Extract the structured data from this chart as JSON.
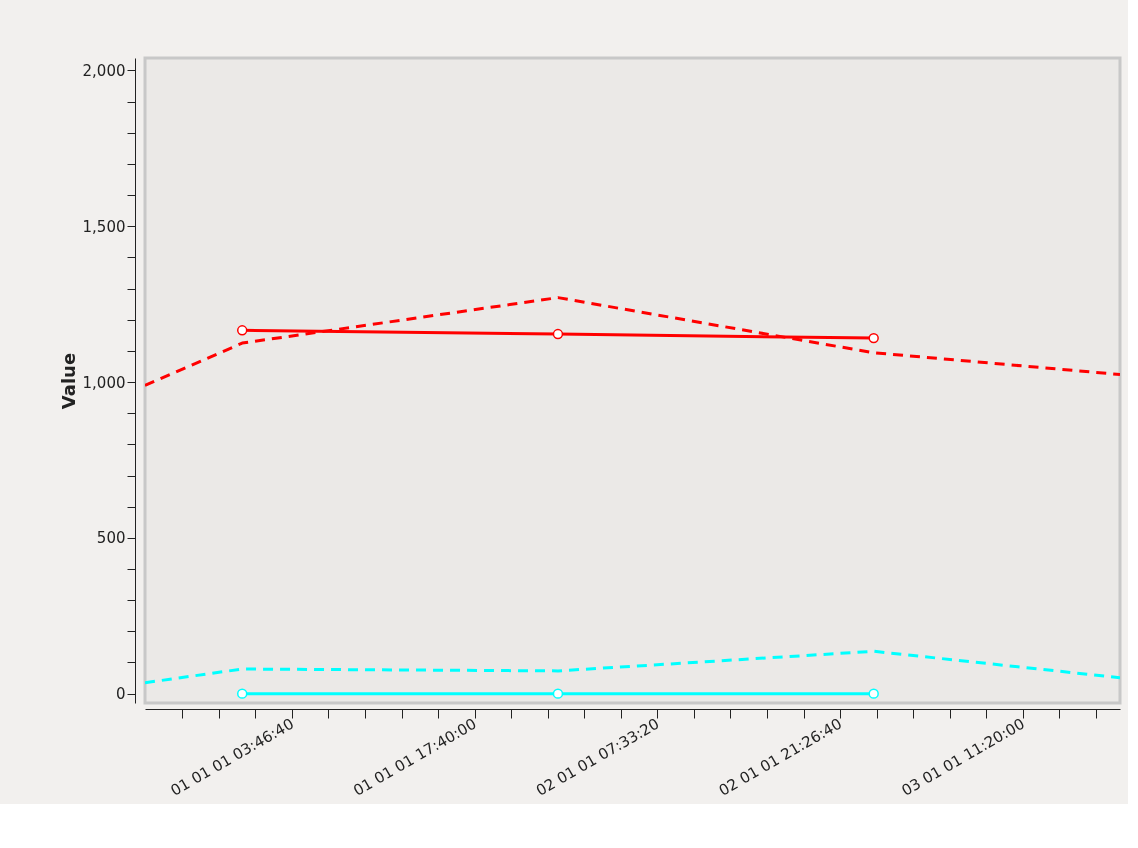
{
  "chart_data": {
    "type": "line",
    "ylabel": "Value",
    "xlim": [
      "2000-12-31T16:36:40",
      "2001-01-03T18:43:20"
    ],
    "xticks": [
      {
        "value": "2000-12-31T19:26:40",
        "label": null
      },
      {
        "value": "2000-12-31T22:13:20",
        "label": null
      },
      {
        "value": "2001-01-01T01:00:00",
        "label": null
      },
      {
        "value": "2001-01-01T03:46:40",
        "label": "01 01 01 03:46:40"
      },
      {
        "value": "2001-01-01T06:33:20",
        "label": null
      },
      {
        "value": "2001-01-01T09:20:00",
        "label": null
      },
      {
        "value": "2001-01-01T12:06:40",
        "label": null
      },
      {
        "value": "2001-01-01T14:53:20",
        "label": null
      },
      {
        "value": "2001-01-01T17:40:00",
        "label": "01 01 01 17:40:00"
      },
      {
        "value": "2001-01-01T20:26:40",
        "label": null
      },
      {
        "value": "2001-01-01T23:13:20",
        "label": null
      },
      {
        "value": "2001-01-02T02:00:00",
        "label": null
      },
      {
        "value": "2001-01-02T04:46:40",
        "label": null
      },
      {
        "value": "2001-01-02T07:33:20",
        "label": "02 01 01 07:33:20"
      },
      {
        "value": "2001-01-02T10:20:00",
        "label": null
      },
      {
        "value": "2001-01-02T13:06:40",
        "label": null
      },
      {
        "value": "2001-01-02T15:53:20",
        "label": null
      },
      {
        "value": "2001-01-02T18:40:00",
        "label": null
      },
      {
        "value": "2001-01-02T21:26:40",
        "label": "02 01 01 21:26:40"
      },
      {
        "value": "2001-01-03T00:13:20",
        "label": null
      },
      {
        "value": "2001-01-03T03:00:00",
        "label": null
      },
      {
        "value": "2001-01-03T05:46:40",
        "label": null
      },
      {
        "value": "2001-01-03T08:33:20",
        "label": null
      },
      {
        "value": "2001-01-03T11:20:00",
        "label": "03 01 01 11:20:00"
      },
      {
        "value": "2001-01-03T14:06:40",
        "label": null
      },
      {
        "value": "2001-01-03T16:53:20",
        "label": null
      }
    ],
    "ylim": [
      -30,
      2040
    ],
    "yticks": [
      {
        "value": 0,
        "label": "0"
      },
      {
        "value": 100,
        "label": null
      },
      {
        "value": 200,
        "label": null
      },
      {
        "value": 300,
        "label": null
      },
      {
        "value": 400,
        "label": null
      },
      {
        "value": 500,
        "label": "500"
      },
      {
        "value": 600,
        "label": null
      },
      {
        "value": 700,
        "label": null
      },
      {
        "value": 800,
        "label": null
      },
      {
        "value": 900,
        "label": null
      },
      {
        "value": 1000,
        "label": "1,000"
      },
      {
        "value": 1100,
        "label": null
      },
      {
        "value": 1200,
        "label": null
      },
      {
        "value": 1300,
        "label": null
      },
      {
        "value": 1400,
        "label": null
      },
      {
        "value": 1500,
        "label": "1,500"
      },
      {
        "value": 1600,
        "label": null
      },
      {
        "value": 1700,
        "label": null
      },
      {
        "value": 1800,
        "label": null
      },
      {
        "value": 1900,
        "label": null
      },
      {
        "value": 2000,
        "label": "2,000"
      }
    ],
    "grid": false,
    "series": [
      {
        "color": "#ff0000",
        "line_style": "dashed",
        "marker": "none",
        "x": [
          "2000-12-31T16:36:40",
          "2001-01-01T00:00",
          "2001-01-02T00:00",
          "2001-01-03T00:00",
          "2001-01-03T18:43:20"
        ],
        "values": [
          989,
          1125,
          1271,
          1094,
          1024
        ]
      },
      {
        "color": "#ff0000",
        "line_style": "solid",
        "marker": "circle",
        "x": [
          "2001-01-01T00:00",
          "2001-01-02T00:00",
          "2001-01-03T00:00"
        ],
        "values": [
          1166,
          1154,
          1141
        ]
      },
      {
        "color": "#00ffff",
        "line_style": "dashed",
        "marker": "none",
        "x": [
          "2000-12-31T16:36:40",
          "2001-01-01T00:00",
          "2001-01-02T00:00",
          "2001-01-03T00:00",
          "2001-01-03T18:43:20"
        ],
        "values": [
          35,
          79,
          73,
          136,
          51
        ]
      },
      {
        "color": "#00ffff",
        "line_style": "solid",
        "marker": "circle",
        "x": [
          "2001-01-01T00:00",
          "2001-01-02T00:00",
          "2001-01-03T00:00"
        ],
        "values": [
          0,
          0,
          0
        ]
      }
    ]
  }
}
